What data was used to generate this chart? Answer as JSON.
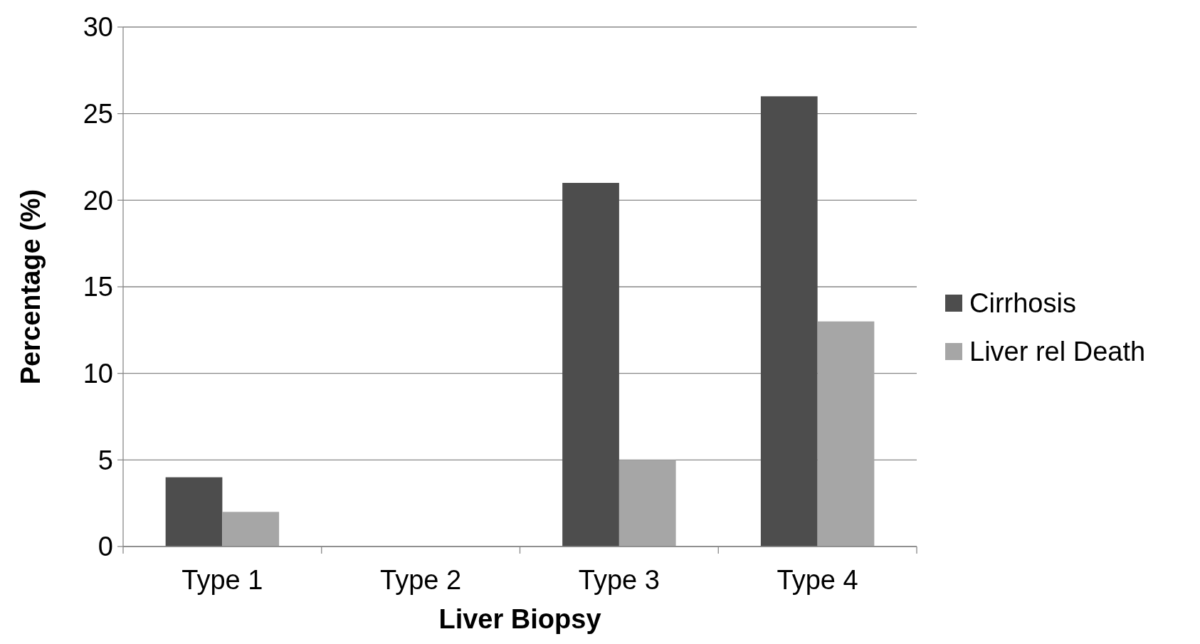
{
  "chart_data": {
    "type": "bar",
    "xlabel": "Liver Biopsy",
    "ylabel": "Percentage (%)",
    "categories": [
      "Type 1",
      "Type 2",
      "Type 3",
      "Type 4"
    ],
    "series": [
      {
        "name": "Cirrhosis",
        "color": "#4d4d4d",
        "values": [
          4,
          0,
          21,
          26
        ]
      },
      {
        "name": "Liver rel Death",
        "color": "#a6a6a6",
        "values": [
          2,
          0,
          5,
          13
        ]
      }
    ],
    "ylim": [
      0,
      30
    ],
    "yticks": [
      0,
      5,
      10,
      15,
      20,
      25,
      30
    ],
    "grid": "y",
    "legend": "right"
  }
}
